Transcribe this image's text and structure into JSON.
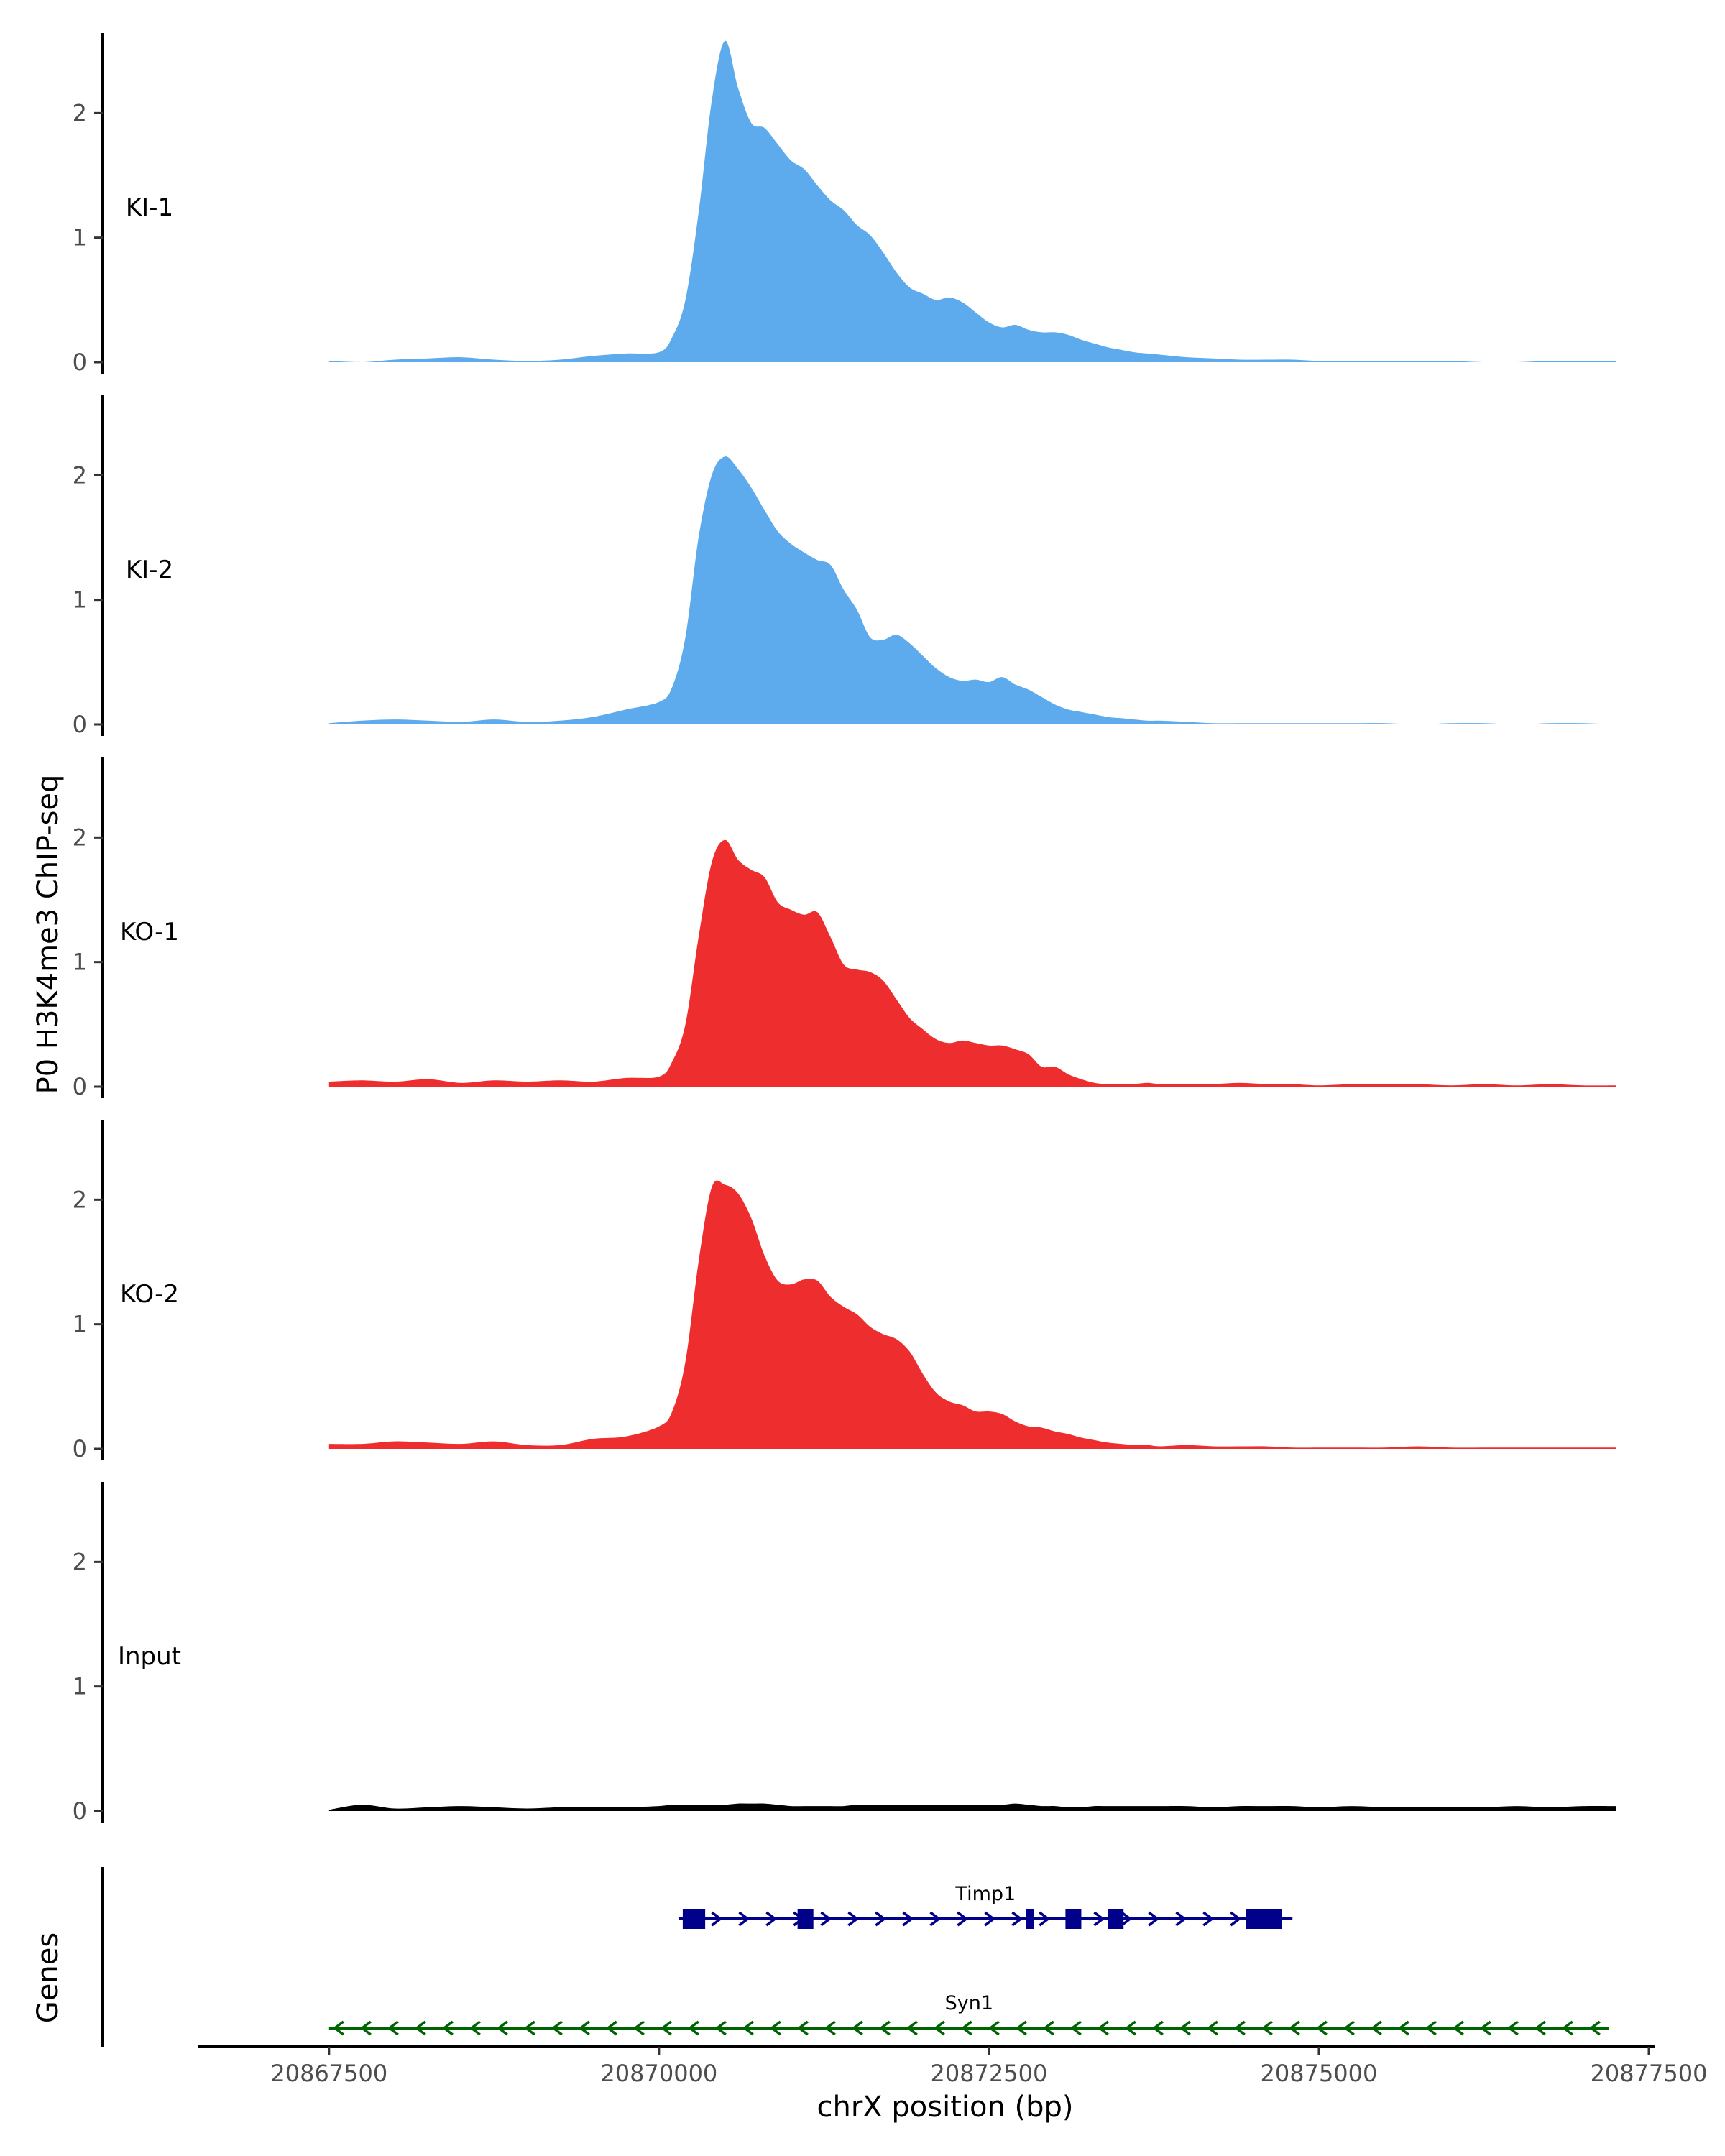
{
  "chart_data": {
    "type": "area",
    "title": "",
    "ylabel": "P0 H3K4me3 ChIP-seq",
    "xlabel": "chrX position (bp)",
    "xlim": [
      20867000,
      20877500
    ],
    "ylim": [
      0,
      2.7
    ],
    "y_ticks": [
      "0",
      "1",
      "2"
    ],
    "x_ticks": [
      {
        "value": 20867500,
        "label": "20867500"
      },
      {
        "value": 20870000,
        "label": "20870000"
      },
      {
        "value": 20872500,
        "label": "20872500"
      },
      {
        "value": 20875000,
        "label": "20875000"
      },
      {
        "value": 20877500,
        "label": "20877500"
      }
    ],
    "grid": false,
    "legend": "none",
    "x": [
      20867500,
      20867750,
      20868000,
      20868250,
      20868500,
      20868750,
      20869000,
      20869250,
      20869500,
      20869750,
      20870000,
      20870100,
      20870200,
      20870300,
      20870400,
      20870500,
      20870600,
      20870700,
      20870800,
      20870900,
      20871000,
      20871100,
      20871200,
      20871300,
      20871400,
      20871500,
      20871600,
      20871700,
      20871800,
      20871900,
      20872000,
      20872100,
      20872200,
      20872300,
      20872400,
      20872500,
      20872600,
      20872700,
      20872800,
      20872900,
      20873000,
      20873100,
      20873200,
      20873300,
      20873400,
      20873500,
      20873600,
      20873700,
      20873800,
      20874000,
      20874200,
      20874400,
      20874600,
      20874800,
      20875000,
      20875250,
      20875500,
      20875750,
      20876000,
      20876250,
      20876500,
      20876750,
      20877000,
      20877250
    ],
    "series": [
      {
        "name": "KI-1",
        "color": "#5DABEC",
        "values": [
          0.01,
          0.0,
          0.02,
          0.03,
          0.04,
          0.02,
          0.01,
          0.02,
          0.05,
          0.07,
          0.08,
          0.2,
          0.5,
          1.2,
          2.1,
          2.58,
          2.2,
          1.92,
          1.88,
          1.75,
          1.62,
          1.55,
          1.42,
          1.3,
          1.22,
          1.1,
          1.02,
          0.88,
          0.72,
          0.6,
          0.55,
          0.5,
          0.52,
          0.48,
          0.4,
          0.32,
          0.28,
          0.3,
          0.26,
          0.24,
          0.24,
          0.22,
          0.18,
          0.15,
          0.12,
          0.1,
          0.08,
          0.07,
          0.06,
          0.04,
          0.03,
          0.02,
          0.02,
          0.02,
          0.01,
          0.01,
          0.01,
          0.01,
          0.01,
          0.0,
          0.0,
          0.01,
          0.01,
          0.01
        ]
      },
      {
        "name": "KI-2",
        "color": "#5DABEC",
        "values": [
          0.01,
          0.03,
          0.04,
          0.03,
          0.02,
          0.04,
          0.02,
          0.03,
          0.06,
          0.12,
          0.18,
          0.3,
          0.7,
          1.5,
          2.0,
          2.15,
          2.05,
          1.9,
          1.72,
          1.55,
          1.45,
          1.38,
          1.32,
          1.28,
          1.08,
          0.92,
          0.7,
          0.68,
          0.72,
          0.65,
          0.55,
          0.45,
          0.38,
          0.35,
          0.36,
          0.34,
          0.38,
          0.32,
          0.28,
          0.22,
          0.16,
          0.12,
          0.1,
          0.08,
          0.06,
          0.05,
          0.04,
          0.03,
          0.03,
          0.02,
          0.01,
          0.01,
          0.01,
          0.01,
          0.01,
          0.01,
          0.01,
          0.0,
          0.01,
          0.01,
          0.0,
          0.01,
          0.01,
          0.0
        ]
      },
      {
        "name": "KO-1",
        "color": "#EE2D2E",
        "values": [
          0.04,
          0.05,
          0.04,
          0.06,
          0.03,
          0.05,
          0.04,
          0.05,
          0.04,
          0.07,
          0.08,
          0.2,
          0.5,
          1.2,
          1.8,
          1.98,
          1.82,
          1.74,
          1.68,
          1.48,
          1.42,
          1.38,
          1.4,
          1.2,
          0.98,
          0.94,
          0.92,
          0.85,
          0.7,
          0.55,
          0.46,
          0.38,
          0.35,
          0.37,
          0.35,
          0.33,
          0.33,
          0.3,
          0.26,
          0.16,
          0.16,
          0.1,
          0.06,
          0.03,
          0.02,
          0.02,
          0.02,
          0.03,
          0.02,
          0.02,
          0.02,
          0.03,
          0.02,
          0.02,
          0.01,
          0.02,
          0.02,
          0.02,
          0.01,
          0.02,
          0.01,
          0.02,
          0.01,
          0.01
        ]
      },
      {
        "name": "KO-2",
        "color": "#EE2D2E",
        "values": [
          0.04,
          0.04,
          0.06,
          0.05,
          0.04,
          0.06,
          0.03,
          0.03,
          0.08,
          0.1,
          0.18,
          0.3,
          0.7,
          1.5,
          2.1,
          2.12,
          2.05,
          1.85,
          1.55,
          1.35,
          1.32,
          1.36,
          1.35,
          1.22,
          1.14,
          1.08,
          0.98,
          0.92,
          0.88,
          0.78,
          0.6,
          0.45,
          0.38,
          0.35,
          0.3,
          0.3,
          0.28,
          0.22,
          0.18,
          0.17,
          0.14,
          0.12,
          0.09,
          0.07,
          0.05,
          0.04,
          0.03,
          0.03,
          0.02,
          0.03,
          0.02,
          0.02,
          0.02,
          0.01,
          0.01,
          0.01,
          0.01,
          0.02,
          0.01,
          0.01,
          0.01,
          0.01,
          0.01,
          0.01
        ]
      },
      {
        "name": "Input",
        "color": "#000000",
        "values": [
          0.01,
          0.05,
          0.02,
          0.03,
          0.04,
          0.03,
          0.02,
          0.03,
          0.03,
          0.03,
          0.04,
          0.05,
          0.05,
          0.05,
          0.05,
          0.05,
          0.06,
          0.06,
          0.06,
          0.05,
          0.04,
          0.04,
          0.04,
          0.04,
          0.04,
          0.05,
          0.05,
          0.05,
          0.05,
          0.05,
          0.05,
          0.05,
          0.05,
          0.05,
          0.05,
          0.05,
          0.05,
          0.06,
          0.05,
          0.04,
          0.04,
          0.03,
          0.03,
          0.04,
          0.04,
          0.04,
          0.04,
          0.04,
          0.04,
          0.04,
          0.03,
          0.04,
          0.04,
          0.04,
          0.03,
          0.04,
          0.03,
          0.03,
          0.03,
          0.03,
          0.04,
          0.03,
          0.04,
          0.04
        ]
      }
    ],
    "genes_track_label": "Genes",
    "genes": [
      {
        "name": "Timp1",
        "color": "#00008B",
        "start": 20870150,
        "end": 20874800,
        "strand": "+",
        "exons": [
          [
            20870180,
            20870350
          ],
          [
            20871050,
            20871170
          ],
          [
            20872780,
            20872840
          ],
          [
            20873080,
            20873200
          ],
          [
            20873400,
            20873520
          ],
          [
            20874450,
            20874720
          ]
        ]
      },
      {
        "name": "Syn1",
        "color": "#006400",
        "start": 20867500,
        "end": 20877200,
        "strand": "-",
        "exons": []
      }
    ]
  }
}
